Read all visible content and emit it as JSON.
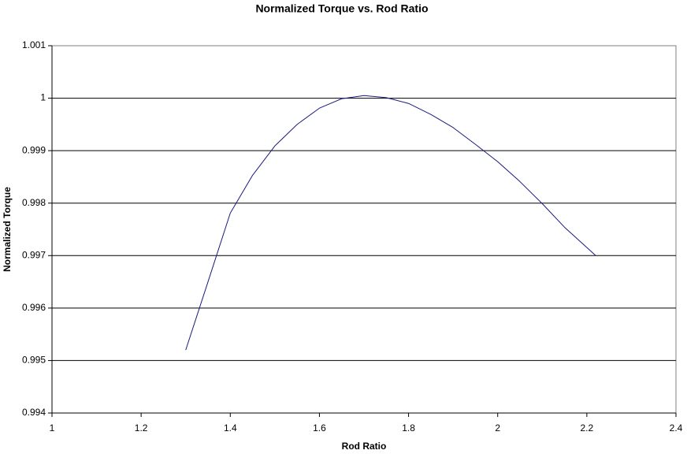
{
  "chart_data": {
    "type": "line",
    "title": "Normalized Torque vs. Rod Ratio",
    "x_label": "Rod Ratio",
    "y_label": "Normalized Torque",
    "x": [
      1.3,
      1.35,
      1.4,
      1.45,
      1.5,
      1.55,
      1.6,
      1.65,
      1.7,
      1.75,
      1.8,
      1.85,
      1.9,
      1.95,
      2.0,
      2.05,
      2.1,
      2.15,
      2.22
    ],
    "series": [
      {
        "name": "Normalized Torque",
        "color": "#1a1a80",
        "values": [
          0.9952,
          0.9965,
          0.99781,
          0.99853,
          0.99909,
          0.9995,
          0.99981,
          0.99999,
          1.00005,
          1.00001,
          0.9999,
          0.99969,
          0.99944,
          0.99912,
          0.99879,
          0.99841,
          0.99799,
          0.99754,
          0.997
        ]
      }
    ],
    "xlim": [
      1,
      2.4
    ],
    "xticks": [
      1,
      1.2,
      1.4,
      1.6,
      1.8,
      2,
      2.2,
      2.4
    ],
    "ylim": [
      0.994,
      1.001
    ],
    "yticks": [
      0.994,
      0.995,
      0.996,
      0.997,
      0.998,
      0.999,
      1,
      1.001
    ],
    "grid": true
  }
}
